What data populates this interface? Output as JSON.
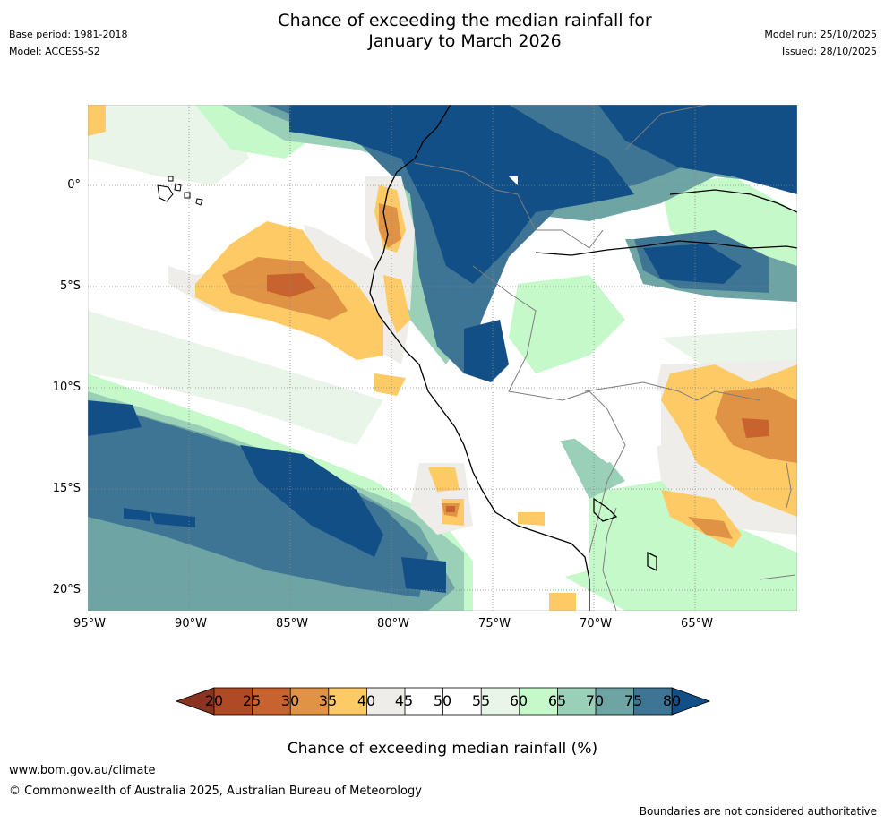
{
  "header": {
    "title_line1": "Chance of exceeding the median rainfall for",
    "title_line2": "January to March 2026",
    "base_period": "Base period: 1981-2018",
    "model": "Model: ACCESS-S2",
    "model_run": "Model run: 25/10/2025",
    "issued": "Issued: 28/10/2025"
  },
  "map": {
    "lat_labels": [
      "0°",
      "5°S",
      "10°S",
      "15°S",
      "20°S"
    ],
    "lon_labels": [
      "95°W",
      "90°W",
      "85°W",
      "80°W",
      "75°W",
      "70°W",
      "65°W"
    ]
  },
  "colorbar": {
    "ticks": [
      "20",
      "25",
      "30",
      "35",
      "40",
      "45",
      "50",
      "55",
      "60",
      "65",
      "70",
      "75",
      "80"
    ],
    "title": "Chance of exceeding median rainfall (%)",
    "colors": {
      "below20": "#8a3320",
      "20-25": "#b04a25",
      "25-30": "#c8622f",
      "30-35": "#e09245",
      "35-40": "#fdca66",
      "40-45": "#efedea",
      "45-50": "#ffffff",
      "50-55": "#ffffff",
      "55-60": "#e8f5e8",
      "60-65": "#c6f9ca",
      "65-70": "#9ad0b8",
      "70-75": "#6ea4a4",
      "75-80": "#3f7594",
      "above80": "#134f87"
    }
  },
  "footer": {
    "website": "www.bom.gov.au/climate",
    "copyright": "© Commonwealth of Australia 2025, Australian Bureau of Meteorology",
    "disclaimer": "Boundaries are not considered authoritative"
  }
}
